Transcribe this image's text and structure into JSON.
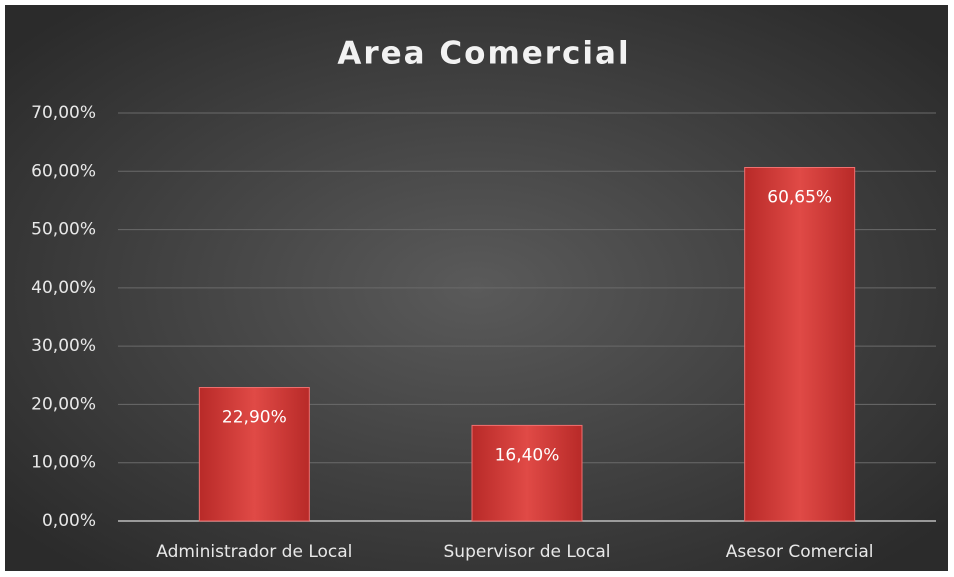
{
  "chart_data": {
    "type": "bar",
    "title": "Area Comercial",
    "categories": [
      "Administrador de Local",
      "Supervisor de Local",
      "Asesor Comercial"
    ],
    "values": [
      22.9,
      16.4,
      60.65
    ],
    "value_labels": [
      "22,90%",
      "16,40%",
      "60,65%"
    ],
    "color": "#d63a38",
    "ylim": [
      0,
      70
    ],
    "yticks": [
      {
        "value": 0,
        "label": "0,00%"
      },
      {
        "value": 10,
        "label": "10,00%"
      },
      {
        "value": 20,
        "label": "20,00%"
      },
      {
        "value": 30,
        "label": "30,00%"
      },
      {
        "value": 40,
        "label": "40,00%"
      },
      {
        "value": 50,
        "label": "50,00%"
      },
      {
        "value": 60,
        "label": "60,00%"
      },
      {
        "value": 70,
        "label": "70,00%"
      }
    ],
    "grid": true
  }
}
